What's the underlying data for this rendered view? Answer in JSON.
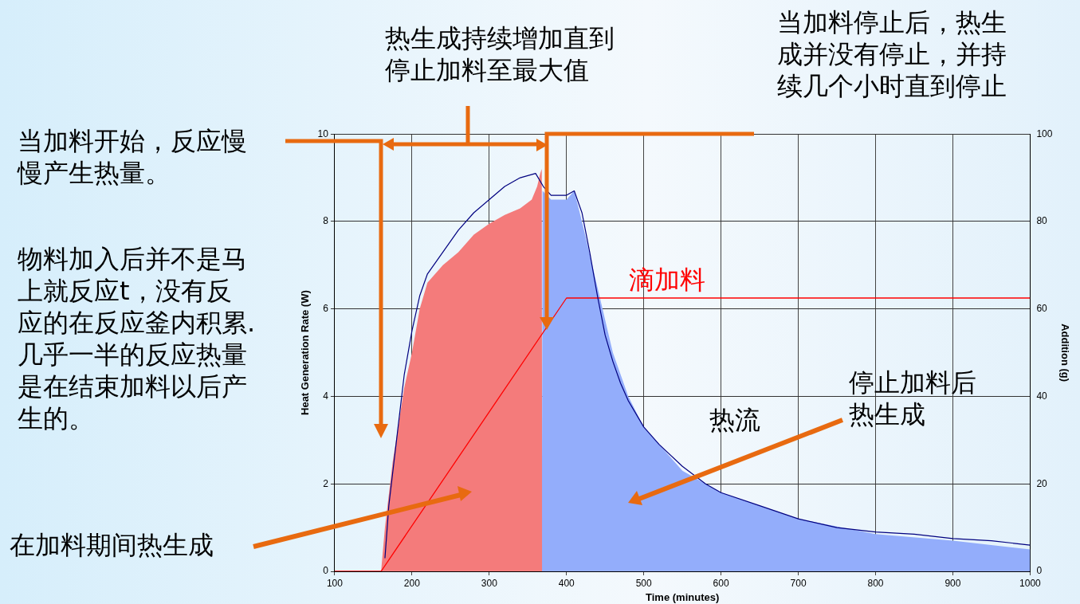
{
  "chart_data": {
    "type": "line",
    "xlabel": "Time (minutes)",
    "ylabel": "Heat Generation Rate (W)",
    "y2label": "Addition (g)",
    "xlim": [
      100,
      1000
    ],
    "xticks": [
      100,
      200,
      300,
      400,
      500,
      600,
      700,
      800,
      900,
      1000
    ],
    "ylim": [
      0,
      10
    ],
    "yticks": [
      0,
      2,
      4,
      6,
      8,
      10
    ],
    "y2lim": [
      0,
      100
    ],
    "y2ticks": [
      0,
      20,
      40,
      60,
      80,
      100
    ],
    "grid": true,
    "legend": false,
    "marker": "none",
    "series": [
      {
        "type": "area",
        "color": "#f47b7b",
        "x": [
          160,
          165,
          175,
          190,
          200,
          210,
          220,
          240,
          260,
          280,
          300,
          320,
          340,
          355,
          362,
          366,
          368,
          368.5
        ],
        "values": [
          0,
          1,
          2.5,
          4.2,
          5,
          6,
          6.6,
          7,
          7.3,
          7.7,
          7.95,
          8.15,
          8.3,
          8.5,
          8.8,
          9.1,
          9.2,
          0
        ]
      },
      {
        "type": "area",
        "color": "#93adfb",
        "x": [
          368,
          369,
          380,
          400,
          410,
          420,
          440,
          460,
          480,
          500,
          550,
          600,
          700,
          800,
          900,
          1000
        ],
        "values": [
          0,
          8.7,
          8.5,
          8.5,
          8.7,
          8,
          6.5,
          5,
          4,
          3.3,
          2.3,
          1.8,
          1.2,
          0.85,
          0.7,
          0.5
        ]
      },
      {
        "type": "line",
        "name": "热流",
        "color": "#000080",
        "x": [
          165,
          170,
          180,
          190,
          200,
          210,
          220,
          240,
          260,
          280,
          300,
          320,
          340,
          360,
          370,
          380,
          400,
          410,
          420,
          430,
          440,
          450,
          460,
          470,
          480,
          500,
          520,
          550,
          580,
          600,
          650,
          700,
          750,
          800,
          850,
          900,
          950,
          1000
        ],
        "values": [
          0.3,
          1.5,
          3,
          4.5,
          5.5,
          6.3,
          6.8,
          7.3,
          7.8,
          8.2,
          8.5,
          8.8,
          9,
          9.1,
          8.8,
          8.6,
          8.6,
          8.7,
          8.2,
          7.3,
          6.3,
          5.4,
          4.8,
          4.3,
          3.9,
          3.3,
          2.9,
          2.4,
          2,
          1.8,
          1.5,
          1.2,
          1,
          0.9,
          0.85,
          0.75,
          0.7,
          0.6
        ]
      },
      {
        "type": "line",
        "name": "滴加料",
        "color": "#ff0000",
        "axis": "y2",
        "x": [
          100,
          160,
          400,
          1000
        ],
        "values": [
          0,
          0,
          62.5,
          62.5
        ]
      }
    ],
    "annotations": [
      "热生成持续增加直到停止加料至最大值",
      "当加料停止后，热生成并没有停止，并持续几个小时直到停止",
      "当加料开始，反应慢慢产生热量。",
      "物料加入后并不是马上就反应t，没有反应的在反应釜内积累. 几乎一半的反应热量是在结束加料以后产生的。",
      "在加料期间热生成",
      "停止加料后热生成"
    ]
  }
}
